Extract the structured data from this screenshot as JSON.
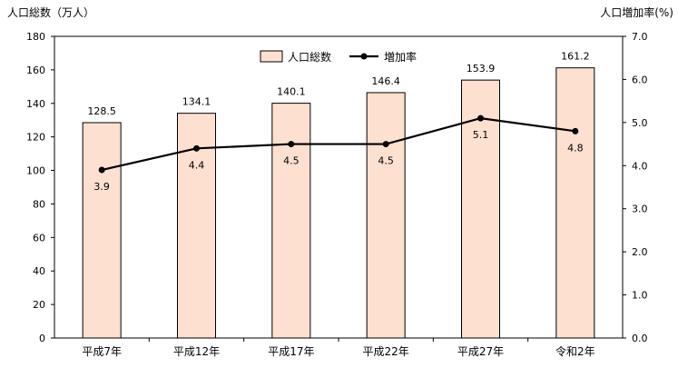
{
  "chart_data": {
    "type": "bar",
    "left_axis_title": "人口総数（万人）",
    "right_axis_title": "人口増加率(%)",
    "categories": [
      "平成7年",
      "平成12年",
      "平成17年",
      "平成22年",
      "平成27年",
      "令和2年"
    ],
    "series": [
      {
        "name": "人口総数",
        "type": "bar",
        "axis": "left",
        "values": [
          128.5,
          134.1,
          140.1,
          146.4,
          153.9,
          161.2
        ],
        "labels": [
          "128.5",
          "134.1",
          "140.1",
          "146.4",
          "153.9",
          "161.2"
        ],
        "color": "#FDE0D0",
        "stroke": "#000000"
      },
      {
        "name": "増加率",
        "type": "line",
        "axis": "right",
        "values": [
          3.9,
          4.4,
          4.5,
          4.5,
          5.1,
          4.8
        ],
        "labels": [
          "3.9",
          "4.4",
          "4.5",
          "4.5",
          "5.1",
          "4.8"
        ],
        "color": "#000000"
      }
    ],
    "y_left": {
      "min": 0,
      "max": 180,
      "ticks": [
        "0",
        "20",
        "40",
        "60",
        "80",
        "100",
        "120",
        "140",
        "160",
        "180"
      ]
    },
    "y_right": {
      "min": 0,
      "max": 7,
      "ticks": [
        "0.0",
        "1.0",
        "2.0",
        "3.0",
        "4.0",
        "5.0",
        "6.0",
        "7.0"
      ]
    },
    "grid": false,
    "legend_position": "top-center"
  }
}
